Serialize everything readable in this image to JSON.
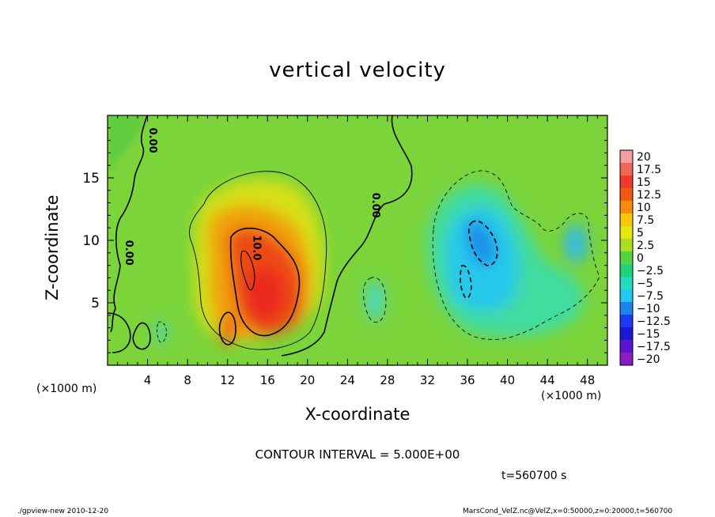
{
  "title": "vertical velocity",
  "xlabel": "X-coordinate",
  "ylabel": "Z-coordinate",
  "x_unit_left": "(×1000 m)",
  "x_unit_right": "(×1000 m)",
  "contour_interval": "CONTOUR INTERVAL = 5.000E+00",
  "time_label": "t=560700 s",
  "footer_left": "./gpview-new  2010-12-20",
  "footer_right": "MarsCond_VelZ.nc@VelZ,x=0:50000,z=0:20000,t=560700",
  "chart_data": {
    "type": "heatmap",
    "title": "vertical velocity",
    "xlabel": "X-coordinate",
    "ylabel": "Z-coordinate",
    "xlim": [
      0,
      50
    ],
    "ylim": [
      0,
      20
    ],
    "x_ticks": [
      "4",
      "8",
      "12",
      "16",
      "20",
      "24",
      "28",
      "32",
      "36",
      "40",
      "44",
      "48"
    ],
    "x_tick_values": [
      4,
      8,
      12,
      16,
      20,
      24,
      28,
      32,
      36,
      40,
      44,
      48
    ],
    "y_ticks": [
      "5",
      "10",
      "15"
    ],
    "y_tick_values": [
      5,
      10,
      15
    ],
    "contour_labels": [
      {
        "text": "0.00",
        "x": 1.8,
        "z": 9.0
      },
      {
        "text": "10.0",
        "x": 14.6,
        "z": 9.4
      },
      {
        "text": "0.00",
        "x": 26.5,
        "z": 12.8
      },
      {
        "text": "0.00",
        "x": 4.2,
        "z": 18.0
      }
    ],
    "colorbar": {
      "labels": [
        "20",
        "17.5",
        "15",
        "12.5",
        "10",
        "7.5",
        "5",
        "2.5",
        "0",
        "−2.5",
        "−5",
        "−7.5",
        "−10",
        "−12.5",
        "−15",
        "−17.5",
        "−20"
      ],
      "colors": [
        "#f4a0a0",
        "#f26858",
        "#f03a28",
        "#f25a14",
        "#f88c0a",
        "#f8c808",
        "#e8e810",
        "#a8e020",
        "#52d440",
        "#20d278",
        "#22dcc0",
        "#22c8f2",
        "#1a84e8",
        "#1a3cf2",
        "#1a1ad2",
        "#5a14d2",
        "#8a1cc0"
      ]
    },
    "features": [
      {
        "kind": "updraft",
        "center_x": 16,
        "center_z": 7,
        "peak": 15
      },
      {
        "kind": "downdraft",
        "center_x": 37,
        "center_z": 10,
        "peak": -10
      },
      {
        "kind": "downdraft",
        "center_x": 46.5,
        "center_z": 9.5,
        "peak": -7.5
      }
    ]
  }
}
